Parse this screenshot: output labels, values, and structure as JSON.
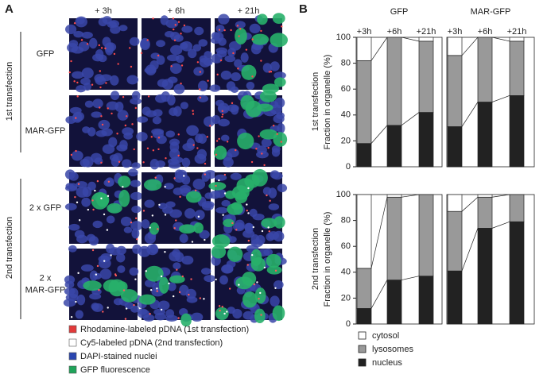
{
  "panel_a": {
    "label": "A",
    "columns": [
      "+ 3h",
      "+ 6h",
      "+ 21h"
    ],
    "rows": [
      [
        "GFP"
      ],
      [
        "MAR-GFP"
      ],
      [
        "2 x GFP"
      ],
      [
        "2 x",
        "MAR-GFP"
      ]
    ],
    "groups": [
      "1st transfection",
      "2nd transfection"
    ],
    "legend": [
      {
        "label": "Rhodamine-labeled pDNA (1st transfection)",
        "color": "#e23a3a"
      },
      {
        "label": "Cy5-labeled pDNA (2nd transfection)",
        "color": "#ffffff"
      },
      {
        "label": "DAPI-stained nuclei",
        "color": "#2a46b0"
      },
      {
        "label": "GFP fluorescence",
        "color": "#1fa45a"
      }
    ]
  },
  "panel_b": {
    "label": "B",
    "row_labels": [
      "1st transfection",
      "2nd transfection"
    ]
  },
  "chart_data": [
    {
      "type": "bar",
      "stacked": true,
      "title": "GFP",
      "ylabel": "Fraction in organelle (%)",
      "categories": [
        "+3h",
        "+6h",
        "+21h"
      ],
      "ylim": [
        0,
        100
      ],
      "yticks": [
        0,
        20,
        40,
        60,
        80,
        100
      ],
      "series": [
        {
          "color": "#ffffff",
          "values": [
            18,
            0,
            3
          ]
        },
        {
          "color": "#999999",
          "values": [
            64,
            68,
            55
          ]
        },
        {
          "color": "#222222",
          "values": [
            18,
            32,
            42
          ]
        }
      ]
    },
    {
      "type": "bar",
      "stacked": true,
      "title": "MAR-GFP",
      "categories": [
        "+3h",
        "+6h",
        "+21h"
      ],
      "ylim": [
        0,
        100
      ],
      "series": [
        {
          "color": "#ffffff",
          "values": [
            14,
            0,
            3
          ]
        },
        {
          "color": "#999999",
          "values": [
            55,
            50,
            42
          ]
        },
        {
          "color": "#222222",
          "values": [
            31,
            50,
            55
          ]
        }
      ]
    },
    {
      "type": "bar",
      "stacked": true,
      "ylabel": "Fraction in organelle (%)",
      "categories": [
        null,
        null,
        null
      ],
      "ylim": [
        0,
        100
      ],
      "yticks": [
        0,
        20,
        40,
        60,
        80,
        100
      ],
      "series": [
        {
          "name": "cytosol",
          "color": "#ffffff",
          "values": [
            57,
            2,
            0
          ]
        },
        {
          "name": "lysosomes",
          "color": "#999999",
          "values": [
            31,
            64,
            63
          ]
        },
        {
          "name": "nucleus",
          "color": "#222222",
          "values": [
            12,
            34,
            37
          ]
        }
      ]
    },
    {
      "type": "bar",
      "stacked": true,
      "categories": [
        null,
        null,
        null
      ],
      "ylim": [
        0,
        100
      ],
      "series": [
        {
          "color": "#ffffff",
          "values": [
            13,
            2,
            0
          ]
        },
        {
          "color": "#999999",
          "values": [
            46,
            24,
            21
          ]
        },
        {
          "color": "#222222",
          "values": [
            41,
            74,
            79
          ]
        }
      ]
    }
  ]
}
